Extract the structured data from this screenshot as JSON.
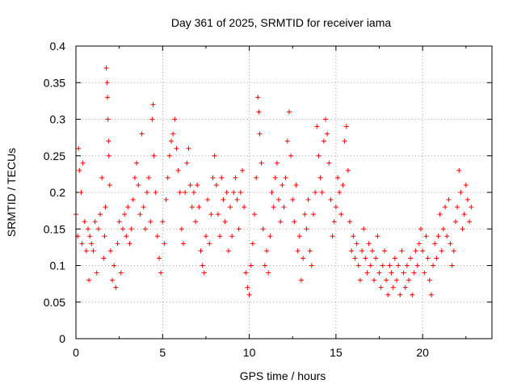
{
  "chart_data": {
    "type": "scatter",
    "title": "Day 361 of 2025, SRMTID for receiver iama",
    "xlabel": "GPS time / hours",
    "ylabel": "SRMTID / TECUs",
    "xlim": [
      0,
      24
    ],
    "ylim": [
      0,
      0.4
    ],
    "xticks": [
      0,
      5,
      10,
      15,
      20
    ],
    "xtick_labels": [
      "0",
      "5",
      "10",
      "15",
      "20"
    ],
    "yticks": [
      0,
      0.05,
      0.1,
      0.15,
      0.2,
      0.25,
      0.3,
      0.35,
      0.4
    ],
    "ytick_labels": [
      "0",
      "0.05",
      "0.1",
      "0.15",
      "0.2",
      "0.25",
      "0.3",
      "0.35",
      "0.4"
    ],
    "grid": true,
    "marker": "+",
    "color": "#ff0000",
    "series": [
      {
        "name": "SRMTID",
        "points": [
          [
            0.0,
            0.17
          ],
          [
            0.1,
            0.14
          ],
          [
            0.15,
            0.26
          ],
          [
            0.2,
            0.23
          ],
          [
            0.3,
            0.2
          ],
          [
            0.35,
            0.13
          ],
          [
            0.4,
            0.24
          ],
          [
            0.5,
            0.16
          ],
          [
            0.6,
            0.12
          ],
          [
            0.7,
            0.15
          ],
          [
            0.75,
            0.08
          ],
          [
            0.8,
            0.14
          ],
          [
            0.9,
            0.13
          ],
          [
            1.0,
            0.12
          ],
          [
            1.1,
            0.16
          ],
          [
            1.2,
            0.09
          ],
          [
            1.3,
            0.15
          ],
          [
            1.4,
            0.17
          ],
          [
            1.5,
            0.22
          ],
          [
            1.6,
            0.11
          ],
          [
            1.65,
            0.14
          ],
          [
            1.7,
            0.18
          ],
          [
            1.75,
            0.37
          ],
          [
            1.8,
            0.35
          ],
          [
            1.82,
            0.33
          ],
          [
            1.85,
            0.3
          ],
          [
            1.88,
            0.27
          ],
          [
            1.9,
            0.25
          ],
          [
            1.95,
            0.21
          ],
          [
            2.0,
            0.12
          ],
          [
            2.1,
            0.08
          ],
          [
            2.2,
            0.1
          ],
          [
            2.3,
            0.07
          ],
          [
            2.4,
            0.13
          ],
          [
            2.5,
            0.16
          ],
          [
            2.6,
            0.09
          ],
          [
            2.7,
            0.15
          ],
          [
            2.8,
            0.17
          ],
          [
            2.9,
            0.14
          ],
          [
            3.0,
            0.18
          ],
          [
            3.1,
            0.13
          ],
          [
            3.2,
            0.15
          ],
          [
            3.3,
            0.19
          ],
          [
            3.4,
            0.22
          ],
          [
            3.5,
            0.24
          ],
          [
            3.6,
            0.21
          ],
          [
            3.7,
            0.17
          ],
          [
            3.8,
            0.28
          ],
          [
            3.9,
            0.18
          ],
          [
            4.0,
            0.15
          ],
          [
            4.1,
            0.2
          ],
          [
            4.2,
            0.22
          ],
          [
            4.3,
            0.16
          ],
          [
            4.4,
            0.3
          ],
          [
            4.45,
            0.32
          ],
          [
            4.5,
            0.25
          ],
          [
            4.6,
            0.2
          ],
          [
            4.7,
            0.14
          ],
          [
            4.8,
            0.11
          ],
          [
            4.9,
            0.09
          ],
          [
            5.0,
            0.16
          ],
          [
            5.1,
            0.13
          ],
          [
            5.2,
            0.19
          ],
          [
            5.3,
            0.22
          ],
          [
            5.4,
            0.25
          ],
          [
            5.5,
            0.27
          ],
          [
            5.6,
            0.28
          ],
          [
            5.7,
            0.3
          ],
          [
            5.8,
            0.26
          ],
          [
            5.9,
            0.23
          ],
          [
            6.0,
            0.2
          ],
          [
            6.1,
            0.15
          ],
          [
            6.2,
            0.13
          ],
          [
            6.3,
            0.2
          ],
          [
            6.4,
            0.24
          ],
          [
            6.5,
            0.26
          ],
          [
            6.6,
            0.21
          ],
          [
            6.7,
            0.18
          ],
          [
            6.8,
            0.2
          ],
          [
            6.9,
            0.16
          ],
          [
            7.0,
            0.21
          ],
          [
            7.1,
            0.18
          ],
          [
            7.2,
            0.12
          ],
          [
            7.3,
            0.1
          ],
          [
            7.4,
            0.09
          ],
          [
            7.5,
            0.14
          ],
          [
            7.6,
            0.19
          ],
          [
            7.7,
            0.13
          ],
          [
            7.8,
            0.17
          ],
          [
            7.9,
            0.22
          ],
          [
            8.0,
            0.25
          ],
          [
            8.1,
            0.21
          ],
          [
            8.2,
            0.17
          ],
          [
            8.3,
            0.14
          ],
          [
            8.4,
            0.22
          ],
          [
            8.5,
            0.19
          ],
          [
            8.6,
            0.16
          ],
          [
            8.7,
            0.2
          ],
          [
            8.8,
            0.12
          ],
          [
            8.9,
            0.18
          ],
          [
            9.0,
            0.14
          ],
          [
            9.1,
            0.2
          ],
          [
            9.2,
            0.22
          ],
          [
            9.3,
            0.19
          ],
          [
            9.4,
            0.15
          ],
          [
            9.5,
            0.2
          ],
          [
            9.6,
            0.23
          ],
          [
            9.7,
            0.18
          ],
          [
            9.8,
            0.09
          ],
          [
            9.9,
            0.07
          ],
          [
            10.0,
            0.06
          ],
          [
            10.1,
            0.1
          ],
          [
            10.2,
            0.13
          ],
          [
            10.3,
            0.17
          ],
          [
            10.4,
            0.22
          ],
          [
            10.5,
            0.33
          ],
          [
            10.55,
            0.31
          ],
          [
            10.6,
            0.28
          ],
          [
            10.7,
            0.24
          ],
          [
            10.8,
            0.15
          ],
          [
            10.9,
            0.1
          ],
          [
            11.0,
            0.12
          ],
          [
            11.1,
            0.09
          ],
          [
            11.2,
            0.14
          ],
          [
            11.3,
            0.2
          ],
          [
            11.4,
            0.18
          ],
          [
            11.5,
            0.22
          ],
          [
            11.6,
            0.24
          ],
          [
            11.7,
            0.19
          ],
          [
            11.8,
            0.16
          ],
          [
            11.9,
            0.21
          ],
          [
            12.0,
            0.18
          ],
          [
            12.1,
            0.22
          ],
          [
            12.2,
            0.27
          ],
          [
            12.3,
            0.31
          ],
          [
            12.4,
            0.25
          ],
          [
            12.5,
            0.19
          ],
          [
            12.6,
            0.16
          ],
          [
            12.7,
            0.21
          ],
          [
            12.8,
            0.12
          ],
          [
            12.9,
            0.14
          ],
          [
            13.0,
            0.08
          ],
          [
            13.1,
            0.11
          ],
          [
            13.2,
            0.17
          ],
          [
            13.3,
            0.15
          ],
          [
            13.4,
            0.19
          ],
          [
            13.5,
            0.12
          ],
          [
            13.6,
            0.1
          ],
          [
            13.7,
            0.17
          ],
          [
            13.8,
            0.2
          ],
          [
            13.9,
            0.29
          ],
          [
            14.0,
            0.25
          ],
          [
            14.1,
            0.22
          ],
          [
            14.2,
            0.2
          ],
          [
            14.3,
            0.27
          ],
          [
            14.4,
            0.3
          ],
          [
            14.5,
            0.28
          ],
          [
            14.6,
            0.24
          ],
          [
            14.7,
            0.19
          ],
          [
            14.8,
            0.14
          ],
          [
            14.9,
            0.16
          ],
          [
            15.0,
            0.18
          ],
          [
            15.1,
            0.22
          ],
          [
            15.2,
            0.2
          ],
          [
            15.3,
            0.17
          ],
          [
            15.4,
            0.21
          ],
          [
            15.5,
            0.27
          ],
          [
            15.6,
            0.29
          ],
          [
            15.7,
            0.23
          ],
          [
            15.8,
            0.16
          ],
          [
            15.9,
            0.12
          ],
          [
            16.0,
            0.14
          ],
          [
            16.1,
            0.11
          ],
          [
            16.2,
            0.13
          ],
          [
            16.3,
            0.1
          ],
          [
            16.4,
            0.08
          ],
          [
            16.5,
            0.12
          ],
          [
            16.6,
            0.15
          ],
          [
            16.7,
            0.11
          ],
          [
            16.8,
            0.09
          ],
          [
            16.9,
            0.13
          ],
          [
            17.0,
            0.1
          ],
          [
            17.1,
            0.12
          ],
          [
            17.2,
            0.08
          ],
          [
            17.3,
            0.11
          ],
          [
            17.4,
            0.14
          ],
          [
            17.5,
            0.09
          ],
          [
            17.6,
            0.07
          ],
          [
            17.7,
            0.1
          ],
          [
            17.8,
            0.12
          ],
          [
            17.9,
            0.08
          ],
          [
            18.0,
            0.06
          ],
          [
            18.1,
            0.1
          ],
          [
            18.2,
            0.09
          ],
          [
            18.3,
            0.07
          ],
          [
            18.4,
            0.11
          ],
          [
            18.5,
            0.08
          ],
          [
            18.6,
            0.1
          ],
          [
            18.7,
            0.06
          ],
          [
            18.8,
            0.12
          ],
          [
            18.9,
            0.09
          ],
          [
            19.0,
            0.07
          ],
          [
            19.1,
            0.1
          ],
          [
            19.2,
            0.08
          ],
          [
            19.3,
            0.11
          ],
          [
            19.4,
            0.06
          ],
          [
            19.5,
            0.09
          ],
          [
            19.6,
            0.12
          ],
          [
            19.7,
            0.1
          ],
          [
            19.8,
            0.13
          ],
          [
            19.9,
            0.15
          ],
          [
            20.0,
            0.12
          ],
          [
            20.1,
            0.09
          ],
          [
            20.2,
            0.14
          ],
          [
            20.3,
            0.11
          ],
          [
            20.4,
            0.08
          ],
          [
            20.5,
            0.06
          ],
          [
            20.6,
            0.1
          ],
          [
            20.7,
            0.13
          ],
          [
            20.8,
            0.11
          ],
          [
            20.9,
            0.14
          ],
          [
            21.0,
            0.17
          ],
          [
            21.1,
            0.12
          ],
          [
            21.2,
            0.15
          ],
          [
            21.3,
            0.18
          ],
          [
            21.4,
            0.14
          ],
          [
            21.5,
            0.19
          ],
          [
            21.6,
            0.13
          ],
          [
            21.7,
            0.1
          ],
          [
            21.8,
            0.12
          ],
          [
            21.9,
            0.16
          ],
          [
            22.0,
            0.18
          ],
          [
            22.1,
            0.23
          ],
          [
            22.2,
            0.2
          ],
          [
            22.3,
            0.15
          ],
          [
            22.4,
            0.17
          ],
          [
            22.5,
            0.21
          ],
          [
            22.6,
            0.19
          ],
          [
            22.7,
            0.16
          ],
          [
            22.8,
            0.18
          ]
        ]
      }
    ]
  }
}
